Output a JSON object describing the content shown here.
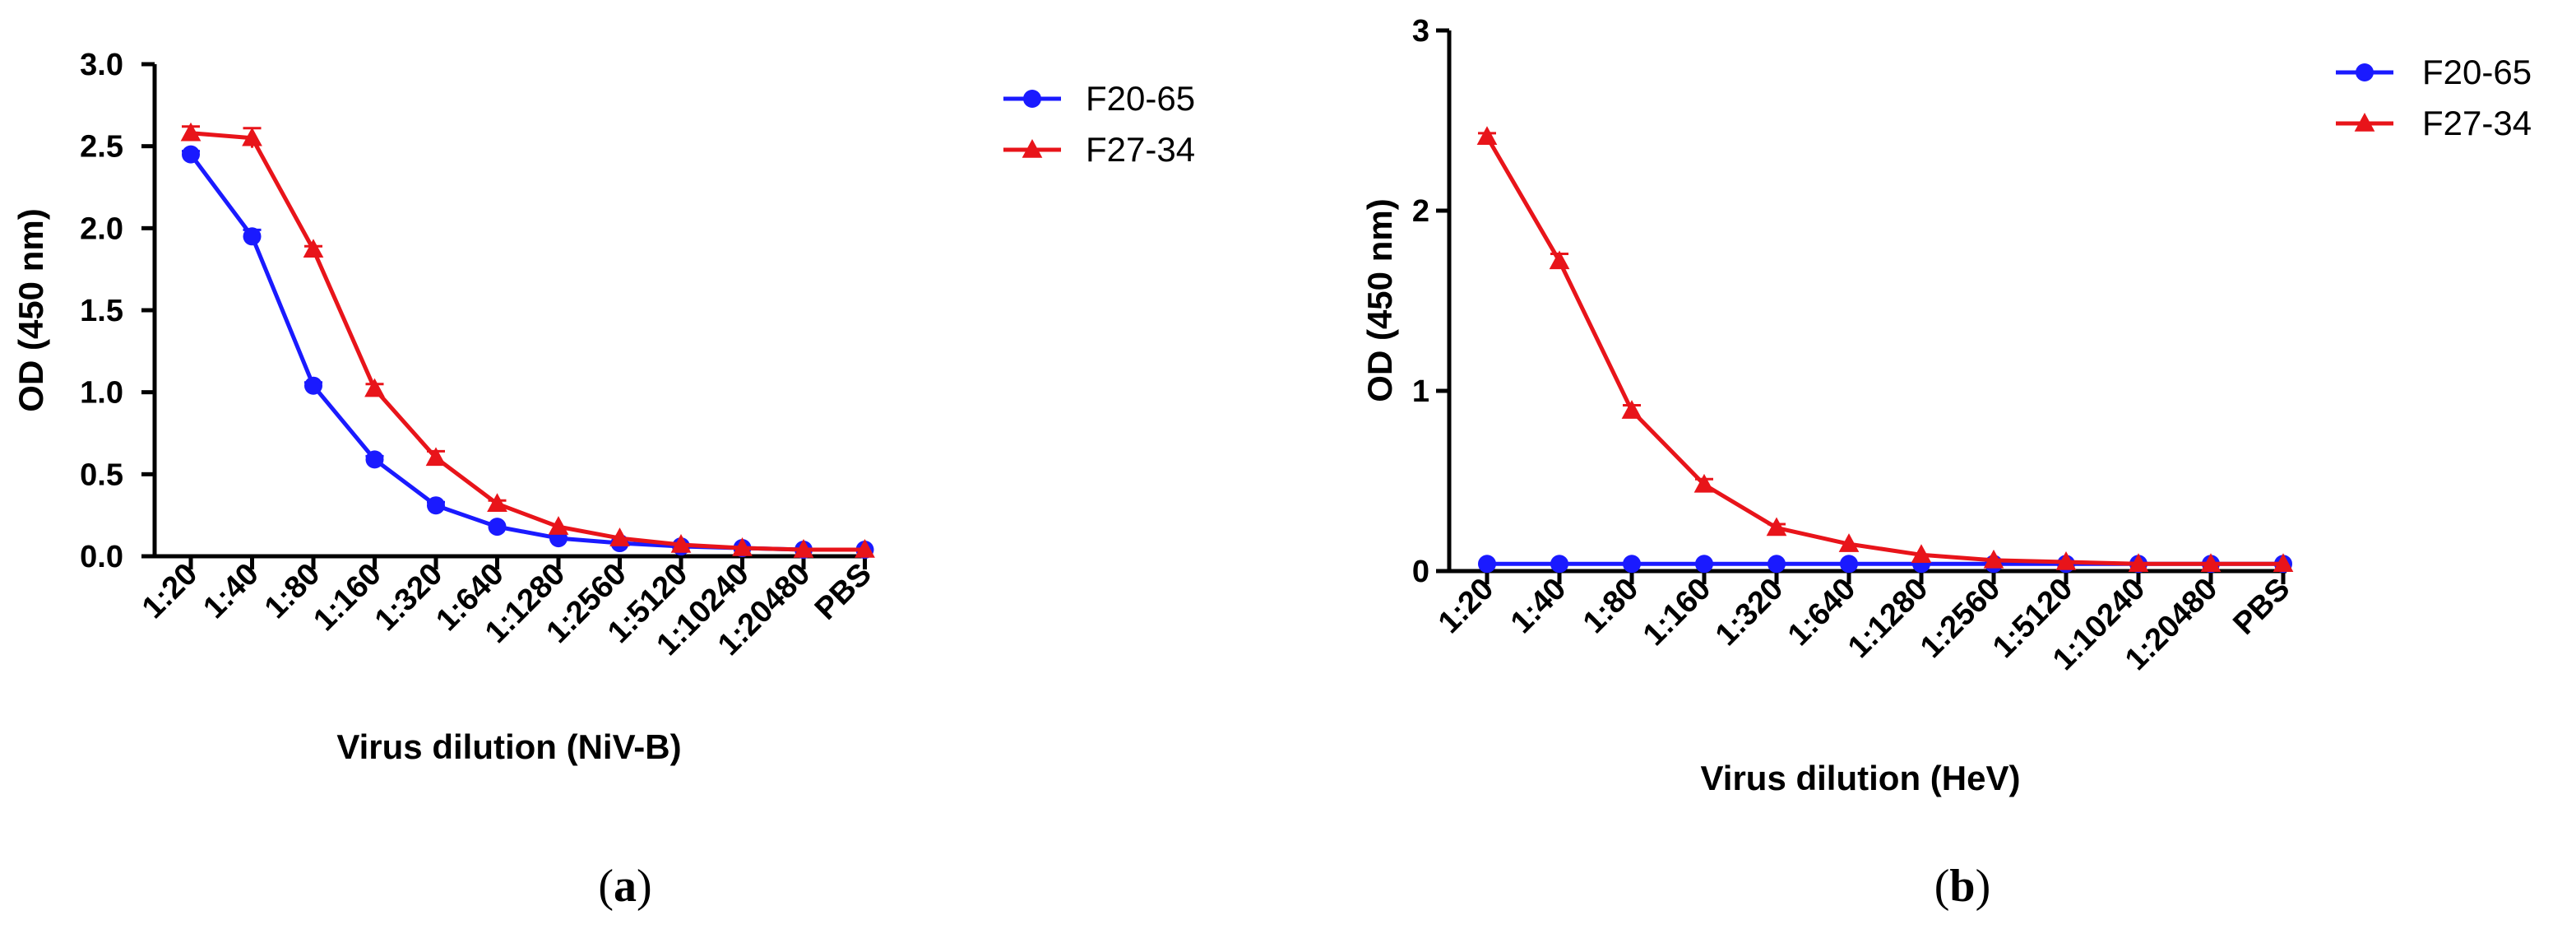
{
  "colors": {
    "F20-65": "#1a1aff",
    "F27-34": "#e8141a"
  },
  "chart_data": [
    {
      "type": "line",
      "panel_label": "a",
      "categories": [
        "1:20",
        "1:40",
        "1:80",
        "1:160",
        "1:320",
        "1:640",
        "1:1280",
        "1:2560",
        "1:5120",
        "1:10240",
        "1:20480",
        "PBS"
      ],
      "xlabel": "Virus dilution (NiV-B)",
      "ylabel": "OD (450 nm)",
      "ylim": [
        0,
        3.0
      ],
      "yticks": [
        0.0,
        0.5,
        1.0,
        1.5,
        2.0,
        2.5,
        3.0
      ],
      "ytick_labels": [
        "0.0",
        "0.5",
        "1.0",
        "1.5",
        "2.0",
        "2.5",
        "3.0"
      ],
      "legend_position": "right",
      "series": [
        {
          "name": "F20-65",
          "marker": "circle",
          "values": [
            2.45,
            1.95,
            1.04,
            0.59,
            0.31,
            0.18,
            0.11,
            0.08,
            0.06,
            0.05,
            0.04,
            0.04
          ],
          "errors": [
            0.02,
            0.04,
            0.02,
            0.02,
            0.02,
            0.01,
            0.01,
            0.01,
            0.01,
            0.01,
            0.01,
            0.01
          ]
        },
        {
          "name": "F27-34",
          "marker": "triangle",
          "values": [
            2.58,
            2.55,
            1.87,
            1.02,
            0.6,
            0.32,
            0.18,
            0.11,
            0.07,
            0.05,
            0.04,
            0.04
          ],
          "errors": [
            0.04,
            0.06,
            0.02,
            0.03,
            0.04,
            0.02,
            0.01,
            0.01,
            0.01,
            0.01,
            0.01,
            0.01
          ]
        }
      ]
    },
    {
      "type": "line",
      "panel_label": "b",
      "categories": [
        "1:20",
        "1:40",
        "1:80",
        "1:160",
        "1:320",
        "1:640",
        "1:1280",
        "1:2560",
        "1:5120",
        "1:10240",
        "1:20480",
        "PBS"
      ],
      "xlabel": "Virus dilution (HeV)",
      "ylabel": "OD (450 nm)",
      "ylim": [
        0,
        3
      ],
      "yticks": [
        0,
        1,
        2,
        3
      ],
      "ytick_labels": [
        "0",
        "1",
        "2",
        "3"
      ],
      "legend_position": "right",
      "series": [
        {
          "name": "F20-65",
          "marker": "circle",
          "values": [
            0.04,
            0.04,
            0.04,
            0.04,
            0.04,
            0.04,
            0.04,
            0.04,
            0.04,
            0.04,
            0.04,
            0.04
          ],
          "errors": [
            0.005,
            0.005,
            0.005,
            0.005,
            0.005,
            0.005,
            0.005,
            0.005,
            0.005,
            0.005,
            0.005,
            0.005
          ]
        },
        {
          "name": "F27-34",
          "marker": "triangle",
          "values": [
            2.41,
            1.72,
            0.89,
            0.48,
            0.24,
            0.15,
            0.09,
            0.06,
            0.05,
            0.04,
            0.04,
            0.04
          ],
          "errors": [
            0.02,
            0.04,
            0.03,
            0.03,
            0.02,
            0.01,
            0.01,
            0.01,
            0.01,
            0.01,
            0.01,
            0.01
          ]
        }
      ]
    }
  ]
}
